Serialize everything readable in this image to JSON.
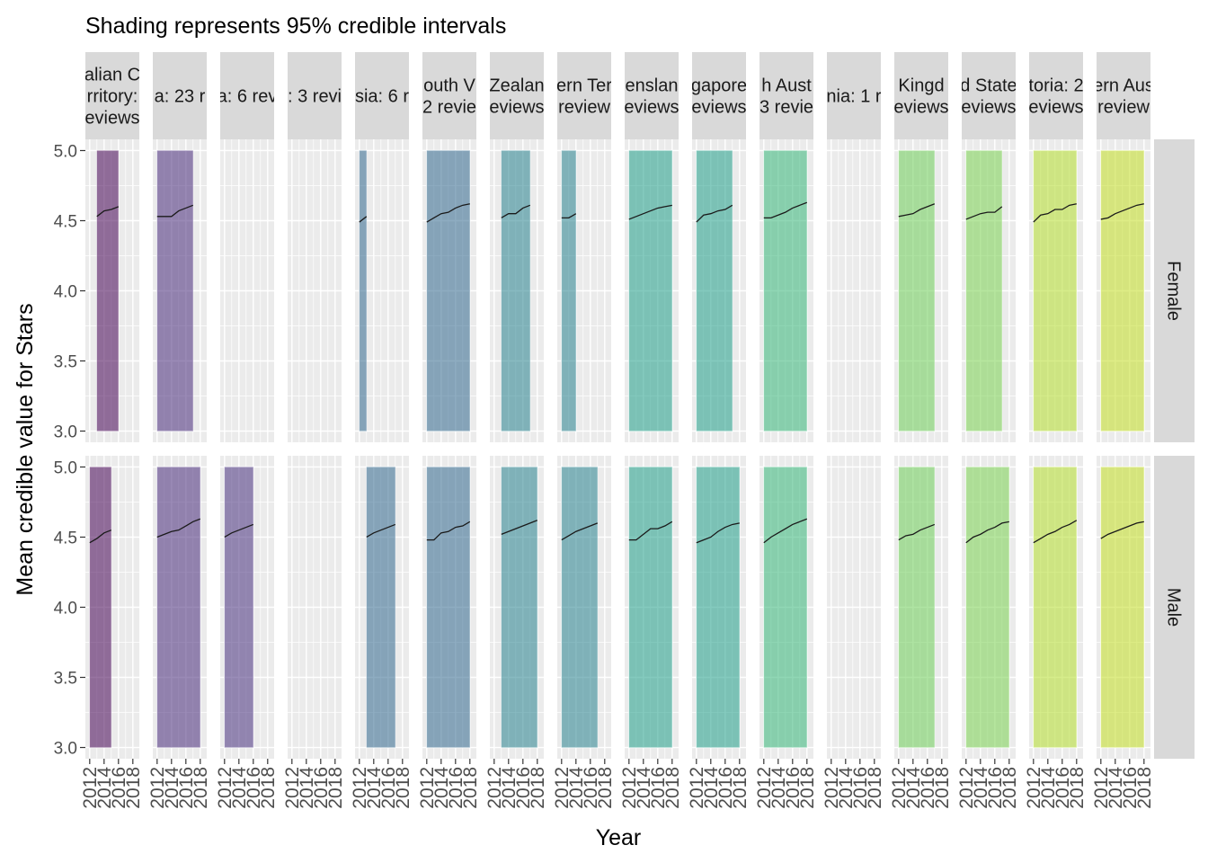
{
  "chart_data": {
    "type": "line",
    "title": "Shading represents 95% credible intervals",
    "xlabel": "Year",
    "ylabel": "Mean credible value for Stars",
    "xlim": [
      2011.4,
      2018.9
    ],
    "ylim": [
      2.92,
      5.08
    ],
    "x_ticks": [
      "2012",
      "2014",
      "2016",
      "2018"
    ],
    "y_ticks": [
      "3.0",
      "3.5",
      "4.0",
      "4.5",
      "5.0"
    ],
    "rows": [
      "Female",
      "Male"
    ],
    "band": {
      "lower": 3.0,
      "upper": 5.0
    },
    "panel_color": "#ebebeb",
    "strip_color": "#d9d9d9",
    "panels": [
      {
        "label_lines": [
          "alian C",
          "rritory:",
          "eviews"
        ],
        "color": "#440154",
        "female": {
          "x": [
            2013,
            2014,
            2015,
            2016
          ],
          "y": [
            4.53,
            4.57,
            4.58,
            4.6
          ]
        },
        "male": {
          "x": [
            2012,
            2013,
            2014,
            2015
          ],
          "y": [
            4.46,
            4.49,
            4.53,
            4.55
          ]
        }
      },
      {
        "label_lines": [
          "a: 23 r"
        ],
        "color": "#472a7a",
        "female": {
          "x": [
            2012,
            2013,
            2014,
            2015,
            2016,
            2017
          ],
          "y": [
            4.53,
            4.53,
            4.53,
            4.57,
            4.59,
            4.61
          ]
        },
        "male": {
          "x": [
            2012,
            2013,
            2014,
            2015,
            2016,
            2017,
            2018
          ],
          "y": [
            4.5,
            4.52,
            4.54,
            4.55,
            4.58,
            4.61,
            4.63
          ]
        }
      },
      {
        "label_lines": [
          "a: 6 rev"
        ],
        "color": "#472f7d",
        "female": null,
        "male": {
          "x": [
            2012,
            2013,
            2014,
            2015,
            2016
          ],
          "y": [
            4.5,
            4.53,
            4.55,
            4.57,
            4.59
          ]
        }
      },
      {
        "label_lines": [
          ": 3 revi"
        ],
        "color": "#3e4a89",
        "female": null,
        "male": null
      },
      {
        "label_lines": [
          "sia: 6 r"
        ],
        "color": "#31688e",
        "female": {
          "x": [
            2012,
            2013
          ],
          "y": [
            4.49,
            4.53
          ]
        },
        "male": {
          "x": [
            2013,
            2014,
            2015,
            2016,
            2017
          ],
          "y": [
            4.5,
            4.53,
            4.55,
            4.57,
            4.59
          ]
        }
      },
      {
        "label_lines": [
          "outh V",
          "2 revie"
        ],
        "color": "#31688e",
        "female": {
          "x": [
            2012,
            2013,
            2014,
            2015,
            2016,
            2017,
            2018
          ],
          "y": [
            4.49,
            4.52,
            4.55,
            4.56,
            4.59,
            4.61,
            4.62
          ]
        },
        "male": {
          "x": [
            2012,
            2013,
            2014,
            2015,
            2016,
            2017,
            2018
          ],
          "y": [
            4.48,
            4.48,
            4.53,
            4.54,
            4.57,
            4.58,
            4.61
          ]
        }
      },
      {
        "label_lines": [
          "Zealan",
          "eviews"
        ],
        "color": "#26828e",
        "female": {
          "x": [
            2013,
            2014,
            2015,
            2016,
            2017
          ],
          "y": [
            4.52,
            4.55,
            4.55,
            4.59,
            4.61
          ]
        },
        "male": {
          "x": [
            2013,
            2014,
            2015,
            2016,
            2017,
            2018
          ],
          "y": [
            4.52,
            4.54,
            4.56,
            4.58,
            4.6,
            4.62
          ]
        }
      },
      {
        "label_lines": [
          "ern Ter",
          "review"
        ],
        "color": "#26828e",
        "female": {
          "x": [
            2012,
            2013,
            2014
          ],
          "y": [
            4.52,
            4.52,
            4.55
          ]
        },
        "male": {
          "x": [
            2012,
            2013,
            2014,
            2015,
            2016,
            2017
          ],
          "y": [
            4.48,
            4.51,
            4.54,
            4.56,
            4.58,
            4.6
          ]
        }
      },
      {
        "label_lines": [
          "enslan",
          "eviews"
        ],
        "color": "#1f9e89",
        "female": {
          "x": [
            2012,
            2013,
            2014,
            2015,
            2016,
            2017,
            2018
          ],
          "y": [
            4.51,
            4.53,
            4.55,
            4.57,
            4.59,
            4.6,
            4.61
          ]
        },
        "male": {
          "x": [
            2012,
            2013,
            2014,
            2015,
            2016,
            2017,
            2018
          ],
          "y": [
            4.48,
            4.48,
            4.52,
            4.56,
            4.56,
            4.58,
            4.61
          ]
        }
      },
      {
        "label_lines": [
          "gapore",
          "eviews"
        ],
        "color": "#1f9e89",
        "female": {
          "x": [
            2012,
            2013,
            2014,
            2015,
            2016,
            2017
          ],
          "y": [
            4.49,
            4.54,
            4.55,
            4.57,
            4.58,
            4.61
          ]
        },
        "male": {
          "x": [
            2012,
            2013,
            2014,
            2015,
            2016,
            2017,
            2018
          ],
          "y": [
            4.46,
            4.48,
            4.5,
            4.54,
            4.57,
            4.59,
            4.6
          ]
        }
      },
      {
        "label_lines": [
          "h Aust",
          "3 revie"
        ],
        "color": "#35b779",
        "female": {
          "x": [
            2012,
            2013,
            2014,
            2015,
            2016,
            2017,
            2018
          ],
          "y": [
            4.52,
            4.52,
            4.54,
            4.56,
            4.59,
            4.61,
            4.63
          ]
        },
        "male": {
          "x": [
            2012,
            2013,
            2014,
            2015,
            2016,
            2017,
            2018
          ],
          "y": [
            4.46,
            4.5,
            4.53,
            4.56,
            4.59,
            4.61,
            4.63
          ]
        }
      },
      {
        "label_lines": [
          "nia: 1 r"
        ],
        "color": "#4ac16d",
        "female": null,
        "male": null
      },
      {
        "label_lines": [
          "Kingd",
          "eviews"
        ],
        "color": "#6ece58",
        "female": {
          "x": [
            2012,
            2013,
            2014,
            2015,
            2016,
            2017
          ],
          "y": [
            4.53,
            4.54,
            4.55,
            4.58,
            4.6,
            4.62
          ]
        },
        "male": {
          "x": [
            2012,
            2013,
            2014,
            2015,
            2016,
            2017
          ],
          "y": [
            4.48,
            4.51,
            4.52,
            4.55,
            4.57,
            4.59
          ]
        }
      },
      {
        "label_lines": [
          "d State",
          "eviews"
        ],
        "color": "#7ad151",
        "female": {
          "x": [
            2012,
            2013,
            2014,
            2015,
            2016,
            2017
          ],
          "y": [
            4.51,
            4.53,
            4.55,
            4.56,
            4.56,
            4.6
          ]
        },
        "male": {
          "x": [
            2012,
            2013,
            2014,
            2015,
            2016,
            2017,
            2018
          ],
          "y": [
            4.46,
            4.5,
            4.52,
            4.55,
            4.57,
            4.6,
            4.61
          ]
        }
      },
      {
        "label_lines": [
          "toria: 2",
          "eviews"
        ],
        "color": "#b5de2b",
        "female": {
          "x": [
            2012,
            2013,
            2014,
            2015,
            2016,
            2017,
            2018
          ],
          "y": [
            4.49,
            4.54,
            4.55,
            4.58,
            4.58,
            4.61,
            4.62
          ]
        },
        "male": {
          "x": [
            2012,
            2013,
            2014,
            2015,
            2016,
            2017,
            2018
          ],
          "y": [
            4.46,
            4.49,
            4.52,
            4.54,
            4.57,
            4.59,
            4.62
          ]
        }
      },
      {
        "label_lines": [
          "ern Aus",
          "review"
        ],
        "color": "#c2df23",
        "female": {
          "x": [
            2012,
            2013,
            2014,
            2015,
            2016,
            2017,
            2018
          ],
          "y": [
            4.51,
            4.52,
            4.55,
            4.57,
            4.59,
            4.61,
            4.62
          ]
        },
        "male": {
          "x": [
            2012,
            2013,
            2014,
            2015,
            2016,
            2017,
            2018
          ],
          "y": [
            4.49,
            4.52,
            4.54,
            4.56,
            4.58,
            4.6,
            4.61
          ]
        }
      }
    ]
  }
}
